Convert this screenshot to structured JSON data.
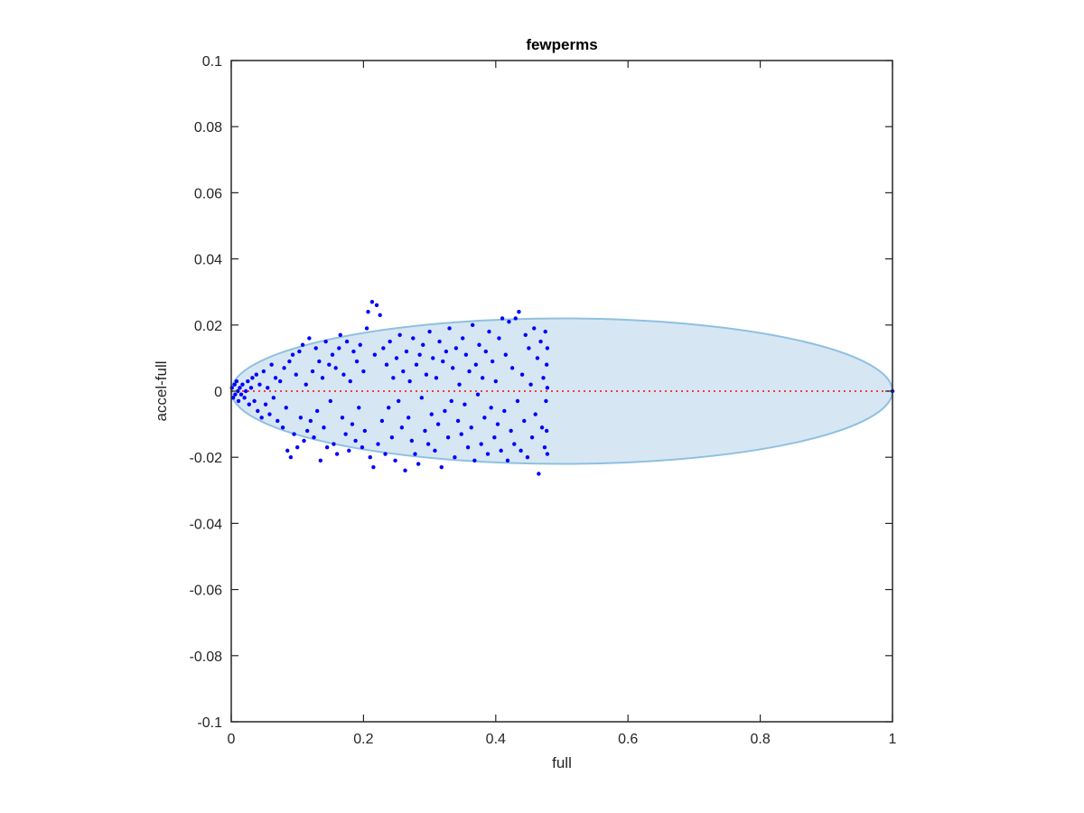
{
  "chart_data": {
    "type": "scatter",
    "title": "fewperms",
    "xlabel": "full",
    "ylabel": "accel-full",
    "xlim": [
      0,
      1
    ],
    "ylim": [
      -0.1,
      0.1
    ],
    "xticks": [
      0,
      0.2,
      0.4,
      0.6,
      0.8,
      1
    ],
    "xtick_labels": [
      "0",
      "0.2",
      "0.4",
      "0.6",
      "0.8",
      "1"
    ],
    "yticks": [
      -0.1,
      -0.08,
      -0.06,
      -0.04,
      -0.02,
      0,
      0.02,
      0.04,
      0.06,
      0.08,
      0.1
    ],
    "ytick_labels": [
      "-0.1",
      "-0.08",
      "-0.06",
      "-0.04",
      "-0.02",
      "0",
      "0.02",
      "0.04",
      "0.06",
      "0.08",
      "0.1"
    ],
    "grid": false,
    "legend": "none",
    "colors": {
      "points": "#0000ff",
      "ellipse_fill": "#d6e7f3",
      "ellipse_edge": "#8fc0e0",
      "reference_line": "#ff0000",
      "axes": "#262626"
    },
    "ellipse": {
      "center": [
        0.5,
        0
      ],
      "x_radius": 0.5,
      "y_radius": 0.022
    },
    "reference_line": {
      "y": 0,
      "x": [
        0,
        1
      ],
      "style": "dotted"
    },
    "series": [
      {
        "values": [
          [
            0.001,
            0.001
          ],
          [
            0.003,
            -0.002
          ],
          [
            0.005,
            0.002
          ],
          [
            0.006,
            -0.001
          ],
          [
            0.008,
            0.003
          ],
          [
            0.01,
            0.0
          ],
          [
            0.011,
            -0.003
          ],
          [
            0.013,
            0.001
          ],
          [
            0.015,
            -0.001
          ],
          [
            0.017,
            0.002
          ],
          [
            0.02,
            -0.002
          ],
          [
            0.022,
            0.0
          ],
          [
            0.025,
            0.003
          ],
          [
            0.027,
            -0.004
          ],
          [
            0.03,
            0.001
          ],
          [
            0.032,
            0.004
          ],
          [
            0.035,
            -0.003
          ],
          [
            0.038,
            0.005
          ],
          [
            0.04,
            -0.006
          ],
          [
            0.043,
            0.002
          ],
          [
            0.046,
            -0.008
          ],
          [
            0.049,
            0.006
          ],
          [
            0.052,
            -0.004
          ],
          [
            0.055,
            0.001
          ],
          [
            0.058,
            -0.007
          ],
          [
            0.061,
            0.008
          ],
          [
            0.064,
            -0.002
          ],
          [
            0.067,
            0.004
          ],
          [
            0.07,
            -0.009
          ],
          [
            0.074,
            0.003
          ],
          [
            0.078,
            -0.011
          ],
          [
            0.08,
            0.007
          ],
          [
            0.083,
            -0.005
          ],
          [
            0.085,
            -0.018
          ],
          [
            0.088,
            0.009
          ],
          [
            0.09,
            -0.02
          ],
          [
            0.093,
            0.011
          ],
          [
            0.095,
            -0.013
          ],
          [
            0.098,
            0.005
          ],
          [
            0.1,
            -0.017
          ],
          [
            0.103,
            0.012
          ],
          [
            0.105,
            -0.008
          ],
          [
            0.108,
            0.014
          ],
          [
            0.11,
            -0.015
          ],
          [
            0.113,
            0.002
          ],
          [
            0.115,
            -0.012
          ],
          [
            0.118,
            0.016
          ],
          [
            0.12,
            -0.009
          ],
          [
            0.123,
            0.006
          ],
          [
            0.125,
            -0.014
          ],
          [
            0.128,
            0.013
          ],
          [
            0.13,
            -0.006
          ],
          [
            0.133,
            0.009
          ],
          [
            0.135,
            -0.021
          ],
          [
            0.138,
            0.004
          ],
          [
            0.14,
            -0.011
          ],
          [
            0.143,
            0.015
          ],
          [
            0.145,
            -0.017
          ],
          [
            0.148,
            0.008
          ],
          [
            0.15,
            -0.003
          ],
          [
            0.153,
            0.011
          ],
          [
            0.155,
            -0.016
          ],
          [
            0.158,
            0.007
          ],
          [
            0.16,
            -0.019
          ],
          [
            0.163,
            0.013
          ],
          [
            0.165,
            0.017
          ],
          [
            0.168,
            -0.008
          ],
          [
            0.17,
            0.005
          ],
          [
            0.173,
            -0.013
          ],
          [
            0.175,
            0.015
          ],
          [
            0.178,
            -0.018
          ],
          [
            0.18,
            0.003
          ],
          [
            0.183,
            -0.01
          ],
          [
            0.185,
            0.012
          ],
          [
            0.188,
            -0.015
          ],
          [
            0.19,
            0.009
          ],
          [
            0.193,
            -0.005
          ],
          [
            0.195,
            0.014
          ],
          [
            0.198,
            -0.017
          ],
          [
            0.2,
            0.006
          ],
          [
            0.202,
            -0.012
          ],
          [
            0.205,
            0.019
          ],
          [
            0.207,
            0.024
          ],
          [
            0.21,
            -0.02
          ],
          [
            0.213,
            0.027
          ],
          [
            0.215,
            -0.023
          ],
          [
            0.217,
            0.011
          ],
          [
            0.22,
            0.026
          ],
          [
            0.222,
            -0.016
          ],
          [
            0.225,
            0.023
          ],
          [
            0.228,
            -0.009
          ],
          [
            0.23,
            0.013
          ],
          [
            0.233,
            -0.019
          ],
          [
            0.235,
            0.008
          ],
          [
            0.238,
            -0.005
          ],
          [
            0.24,
            0.015
          ],
          [
            0.243,
            -0.014
          ],
          [
            0.245,
            0.004
          ],
          [
            0.248,
            -0.021
          ],
          [
            0.25,
            0.01
          ],
          [
            0.253,
            -0.003
          ],
          [
            0.255,
            0.017
          ],
          [
            0.258,
            -0.011
          ],
          [
            0.26,
            0.006
          ],
          [
            0.263,
            -0.024
          ],
          [
            0.265,
            0.012
          ],
          [
            0.268,
            -0.008
          ],
          [
            0.27,
            0.003
          ],
          [
            0.273,
            -0.015
          ],
          [
            0.275,
            0.016
          ],
          [
            0.278,
            -0.019
          ],
          [
            0.28,
            0.008
          ],
          [
            0.283,
            -0.022
          ],
          [
            0.285,
            0.011
          ],
          [
            0.288,
            -0.002
          ],
          [
            0.29,
            0.014
          ],
          [
            0.293,
            -0.012
          ],
          [
            0.295,
            0.005
          ],
          [
            0.298,
            -0.016
          ],
          [
            0.3,
            0.018
          ],
          [
            0.303,
            -0.007
          ],
          [
            0.305,
            0.01
          ],
          [
            0.308,
            -0.018
          ],
          [
            0.31,
            0.004
          ],
          [
            0.313,
            -0.01
          ],
          [
            0.315,
            0.015
          ],
          [
            0.318,
            -0.023
          ],
          [
            0.32,
            0.009
          ],
          [
            0.323,
            -0.006
          ],
          [
            0.325,
            0.012
          ],
          [
            0.328,
            -0.014
          ],
          [
            0.33,
            0.019
          ],
          [
            0.333,
            -0.003
          ],
          [
            0.335,
            0.007
          ],
          [
            0.338,
            -0.02
          ],
          [
            0.34,
            0.013
          ],
          [
            0.343,
            -0.009
          ],
          [
            0.345,
            0.002
          ],
          [
            0.348,
            -0.013
          ],
          [
            0.35,
            0.016
          ],
          [
            0.353,
            -0.004
          ],
          [
            0.355,
            0.011
          ],
          [
            0.358,
            -0.017
          ],
          [
            0.36,
            0.006
          ],
          [
            0.363,
            -0.011
          ],
          [
            0.365,
            0.02
          ],
          [
            0.368,
            -0.021
          ],
          [
            0.37,
            0.008
          ],
          [
            0.373,
            -0.001
          ],
          [
            0.375,
            0.014
          ],
          [
            0.378,
            -0.016
          ],
          [
            0.38,
            0.004
          ],
          [
            0.383,
            -0.008
          ],
          [
            0.385,
            0.012
          ],
          [
            0.388,
            -0.019
          ],
          [
            0.39,
            0.018
          ],
          [
            0.393,
            -0.005
          ],
          [
            0.395,
            0.009
          ],
          [
            0.398,
            -0.014
          ],
          [
            0.4,
            0.003
          ],
          [
            0.403,
            -0.01
          ],
          [
            0.405,
            0.016
          ],
          [
            0.408,
            -0.018
          ],
          [
            0.41,
            0.022
          ],
          [
            0.413,
            -0.006
          ],
          [
            0.415,
            0.011
          ],
          [
            0.418,
            -0.021
          ],
          [
            0.42,
            0.021
          ],
          [
            0.423,
            -0.012
          ],
          [
            0.425,
            0.007
          ],
          [
            0.428,
            -0.016
          ],
          [
            0.43,
            0.022
          ],
          [
            0.433,
            -0.003
          ],
          [
            0.435,
            0.024
          ],
          [
            0.438,
            -0.018
          ],
          [
            0.44,
            0.005
          ],
          [
            0.443,
            -0.009
          ],
          [
            0.445,
            0.017
          ],
          [
            0.448,
            -0.02
          ],
          [
            0.45,
            0.013
          ],
          [
            0.453,
            0.002
          ],
          [
            0.455,
            -0.014
          ],
          [
            0.458,
            0.019
          ],
          [
            0.46,
            -0.007
          ],
          [
            0.463,
            0.01
          ],
          [
            0.465,
            -0.025
          ],
          [
            0.468,
            0.015
          ],
          [
            0.47,
            -0.011
          ],
          [
            0.472,
            0.004
          ],
          [
            0.474,
            -0.017
          ],
          [
            0.475,
            0.018
          ],
          [
            0.476,
            -0.003
          ],
          [
            0.477,
            0.008
          ],
          [
            0.477,
            -0.012
          ],
          [
            0.478,
            0.013
          ],
          [
            0.478,
            -0.019
          ],
          [
            0.478,
            0.001
          ],
          [
            1.0,
            0.0
          ]
        ]
      }
    ]
  }
}
